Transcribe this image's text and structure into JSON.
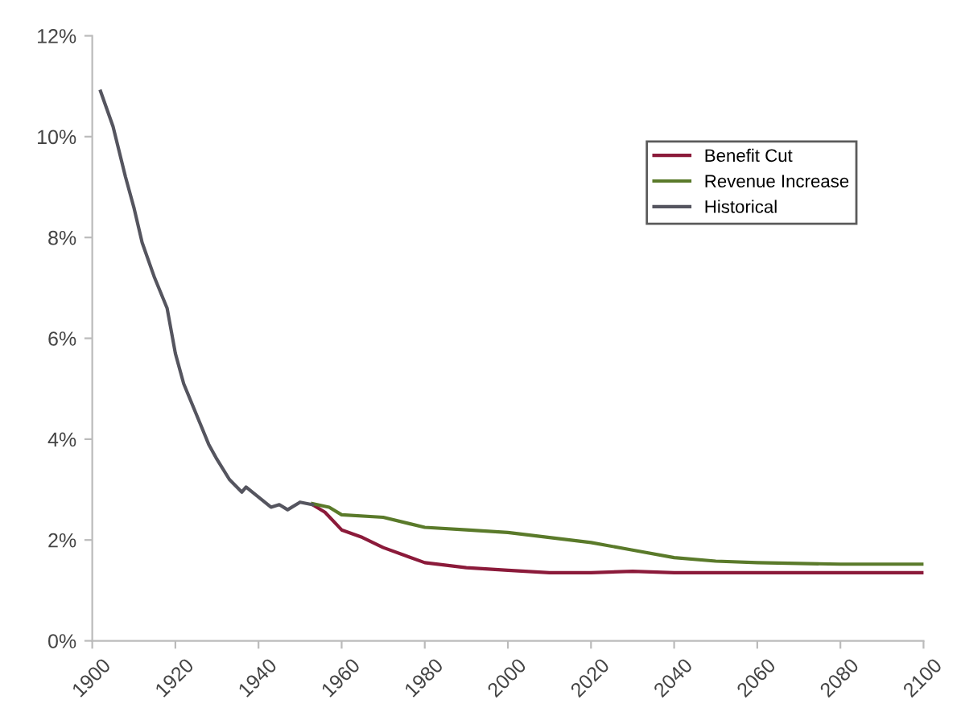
{
  "chart_data": {
    "type": "line",
    "legend": "upper right",
    "grid": false,
    "xlim": [
      1900,
      2100
    ],
    "xticks": [
      1900,
      1920,
      1940,
      1960,
      1980,
      2000,
      2020,
      2040,
      2060,
      2080,
      2100
    ],
    "ylim": [
      0,
      12
    ],
    "yticks": [
      {
        "value": 0,
        "label": "0%"
      },
      {
        "value": 2,
        "label": "2%"
      },
      {
        "value": 4,
        "label": "4%"
      },
      {
        "value": 6,
        "label": "6%"
      },
      {
        "value": 8,
        "label": "8%"
      },
      {
        "value": 10,
        "label": "10%"
      },
      {
        "value": 12,
        "label": "12%"
      }
    ],
    "series": [
      {
        "name": "Benefit Cut",
        "color": "#8b1a3a",
        "x": [
          1953,
          1956,
          1960,
          1965,
          1970,
          1975,
          1980,
          1990,
          2000,
          2010,
          2020,
          2030,
          2040,
          2060,
          2080,
          2100
        ],
        "values": [
          2.7,
          2.55,
          2.2,
          2.05,
          1.85,
          1.7,
          1.55,
          1.45,
          1.4,
          1.35,
          1.35,
          1.38,
          1.35,
          1.35,
          1.35,
          1.35
        ]
      },
      {
        "name": "Revenue Increase",
        "color": "#5a7a2a",
        "x": [
          1953,
          1957,
          1960,
          1970,
          1980,
          1990,
          2000,
          2010,
          2020,
          2030,
          2040,
          2050,
          2060,
          2080,
          2100
        ],
        "values": [
          2.72,
          2.65,
          2.5,
          2.45,
          2.25,
          2.2,
          2.15,
          2.05,
          1.95,
          1.8,
          1.65,
          1.58,
          1.55,
          1.52,
          1.52
        ]
      },
      {
        "name": "Historical",
        "color": "#55555f",
        "x": [
          1902,
          1905,
          1908,
          1910,
          1912,
          1915,
          1918,
          1920,
          1922,
          1925,
          1928,
          1930,
          1933,
          1936,
          1937,
          1940,
          1943,
          1945,
          1947,
          1950,
          1953
        ],
        "values": [
          10.9,
          10.2,
          9.2,
          8.6,
          7.9,
          7.2,
          6.6,
          5.7,
          5.1,
          4.5,
          3.9,
          3.6,
          3.2,
          2.95,
          3.05,
          2.85,
          2.65,
          2.7,
          2.6,
          2.75,
          2.7
        ]
      }
    ]
  }
}
